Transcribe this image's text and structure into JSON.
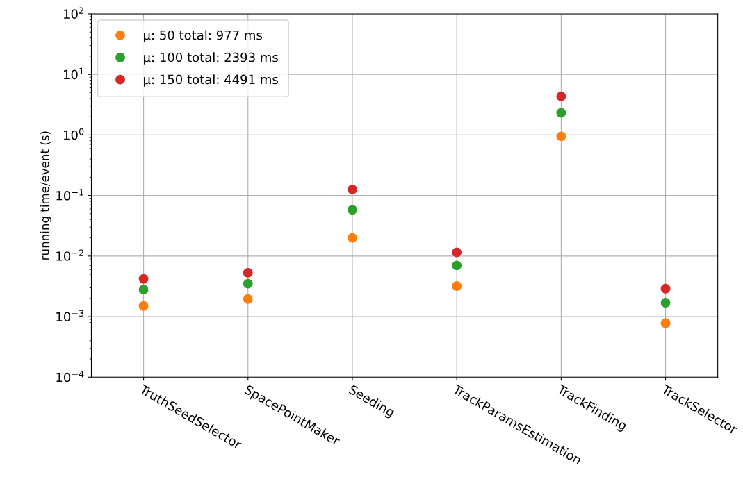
{
  "chart_data": {
    "type": "scatter",
    "ylabel": "running time/event (s)",
    "categories": [
      "TruthSeedSelector",
      "SpacePointMaker",
      "Seeding",
      "TrackParamsEstimation",
      "TrackFinding",
      "TrackSelector"
    ],
    "series": [
      {
        "name": "μ: 50 total: 977 ms",
        "color": "#ff7f0e",
        "values": [
          0.0015,
          0.00195,
          0.02,
          0.0032,
          0.95,
          0.00078
        ]
      },
      {
        "name": "μ: 100 total: 2393 ms",
        "color": "#2ca02c",
        "values": [
          0.0028,
          0.0035,
          0.058,
          0.007,
          2.32,
          0.0017
        ]
      },
      {
        "name": "μ: 150 total: 4491 ms",
        "color": "#d62728",
        "values": [
          0.0042,
          0.0053,
          0.126,
          0.0115,
          4.34,
          0.0029
        ]
      }
    ],
    "log": "y",
    "ylim": [
      0.0001,
      100
    ],
    "yticks": [
      {
        "value": 0.0001,
        "label": "10$^{−4}$"
      },
      {
        "value": 0.001,
        "label": "10$^{−3}$"
      },
      {
        "value": 0.01,
        "label": "10$^{−2}$"
      },
      {
        "value": 0.1,
        "label": "10$^{−1}$"
      },
      {
        "value": 1,
        "label": "10$^{0}$"
      },
      {
        "value": 10,
        "label": "10$^{1}$"
      },
      {
        "value": 100,
        "label": "10$^{2}$"
      }
    ],
    "grid": true,
    "legend": "top left",
    "marker": "circle"
  }
}
